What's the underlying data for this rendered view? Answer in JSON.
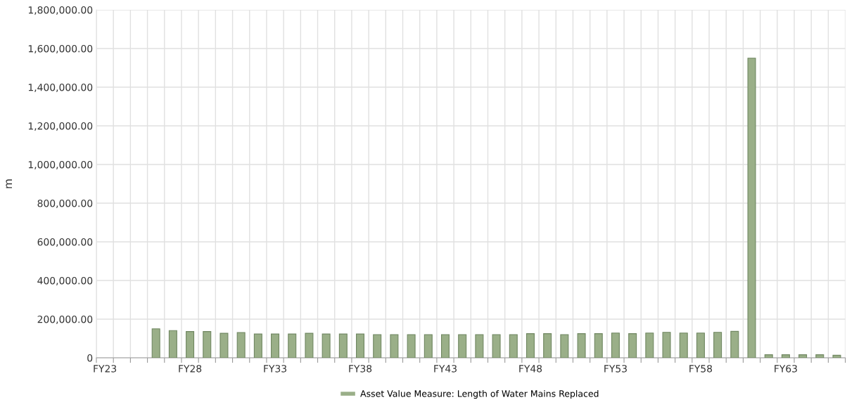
{
  "chart_data": {
    "type": "bar",
    "ylabel": "m",
    "categories": [
      "FY23",
      null,
      null,
      null,
      null,
      "FY28",
      null,
      null,
      null,
      null,
      "FY33",
      null,
      null,
      null,
      null,
      "FY38",
      null,
      null,
      null,
      null,
      "FY43",
      null,
      null,
      null,
      null,
      "FY48",
      null,
      null,
      null,
      null,
      "FY53",
      null,
      null,
      null,
      null,
      "FY58",
      null,
      null,
      null,
      null,
      "FY63",
      null,
      null,
      null
    ],
    "series": [
      {
        "name": "Asset Value Measure: Length of Water Mains Replaced",
        "color": "#9aaf88",
        "values": [
          null,
          null,
          null,
          150000,
          141000,
          136000,
          136000,
          127000,
          131000,
          123000,
          123000,
          123000,
          127000,
          123000,
          123000,
          123000,
          120000,
          120000,
          120000,
          120000,
          120000,
          120000,
          120000,
          120000,
          120000,
          125000,
          125000,
          120000,
          125000,
          125000,
          128000,
          125000,
          128000,
          132000,
          128000,
          128000,
          132000,
          137000,
          1550000,
          16000,
          16000,
          16000,
          16000,
          13000
        ]
      }
    ],
    "ylim": [
      0,
      1800000
    ],
    "yticks": [
      {
        "value": 0,
        "label": "0"
      },
      {
        "value": 200000,
        "label": "200,000.00"
      },
      {
        "value": 400000,
        "label": "400,000.00"
      },
      {
        "value": 600000,
        "label": "600,000.00"
      },
      {
        "value": 800000,
        "label": "800,000.00"
      },
      {
        "value": 1000000,
        "label": "1,000,000.00"
      },
      {
        "value": 1200000,
        "label": "1,200,000.00"
      },
      {
        "value": 1400000,
        "label": "1,400,000.00"
      },
      {
        "value": 1600000,
        "label": "1,600,000.00"
      },
      {
        "value": 1800000,
        "label": "1,800,000.00"
      }
    ],
    "grid": true,
    "legend": "bottom"
  }
}
